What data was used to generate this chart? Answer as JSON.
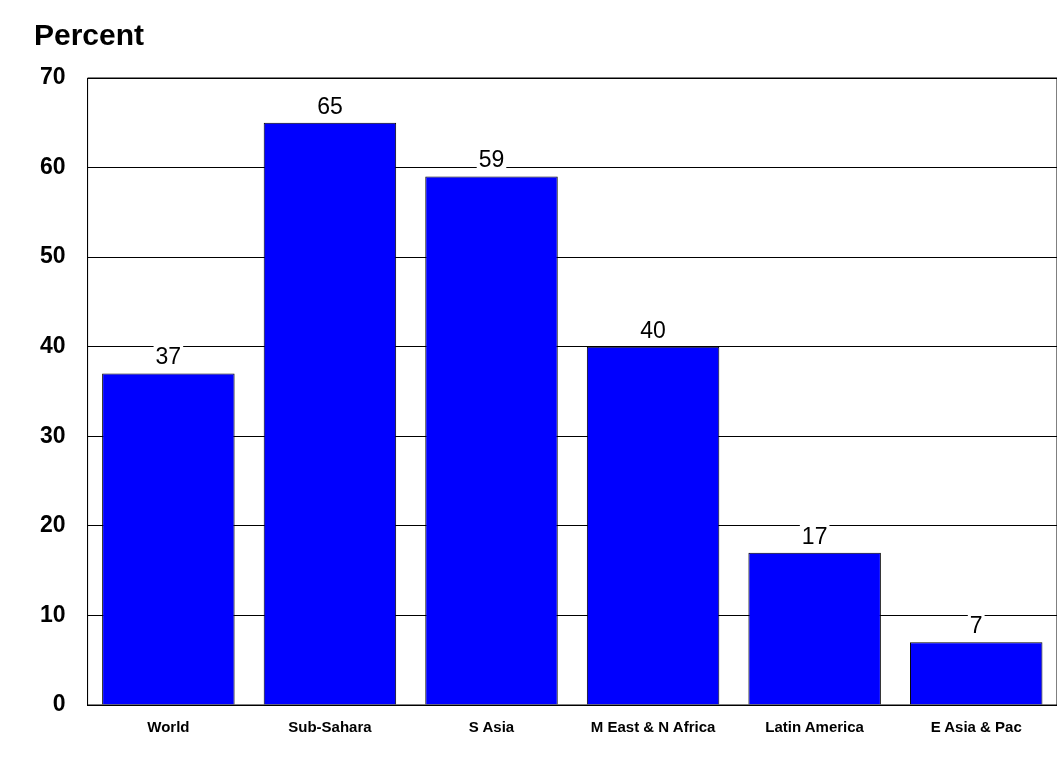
{
  "chart_data": {
    "type": "bar",
    "ylabel": "Percent",
    "categories": [
      "World",
      "Sub-Sahara",
      "S Asia",
      "M East & N Africa",
      "Latin America",
      "E Asia & Pac"
    ],
    "values": [
      37,
      65,
      59,
      40,
      17,
      7
    ],
    "color": "#0000ff",
    "ylim": [
      0,
      70
    ],
    "yticks": [
      0,
      10,
      20,
      30,
      40,
      50,
      60,
      70
    ],
    "grid": "y",
    "data_labels": true,
    "legend": false
  }
}
